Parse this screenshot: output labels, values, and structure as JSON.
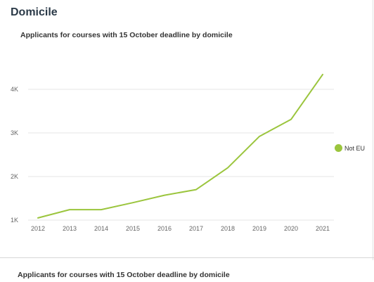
{
  "section_title": "Domicile",
  "chart_title": "Applicants for courses with 15 October deadline  by domicile",
  "second_chart_title": "Applicants for courses with 15 October deadline  by domicile",
  "colors": {
    "series": "#9bc53d",
    "grid": "#e6e6e6",
    "text": "#666666"
  },
  "chart_data": {
    "type": "line",
    "title": "Applicants for courses with 15 October deadline  by domicile",
    "xlabel": "",
    "ylabel": "",
    "categories": [
      "2012",
      "2013",
      "2014",
      "2015",
      "2016",
      "2017",
      "2018",
      "2019",
      "2020",
      "2021"
    ],
    "ylim": [
      1000,
      4500
    ],
    "yticks": [
      1000,
      2000,
      3000,
      4000
    ],
    "ytick_labels": [
      "1K",
      "2K",
      "3K",
      "4K"
    ],
    "grid": true,
    "legend_position": "right",
    "series": [
      {
        "name": "Not EU",
        "values": [
          1050,
          1240,
          1240,
          1400,
          1570,
          1700,
          2200,
          2920,
          3310,
          4340
        ]
      }
    ]
  }
}
